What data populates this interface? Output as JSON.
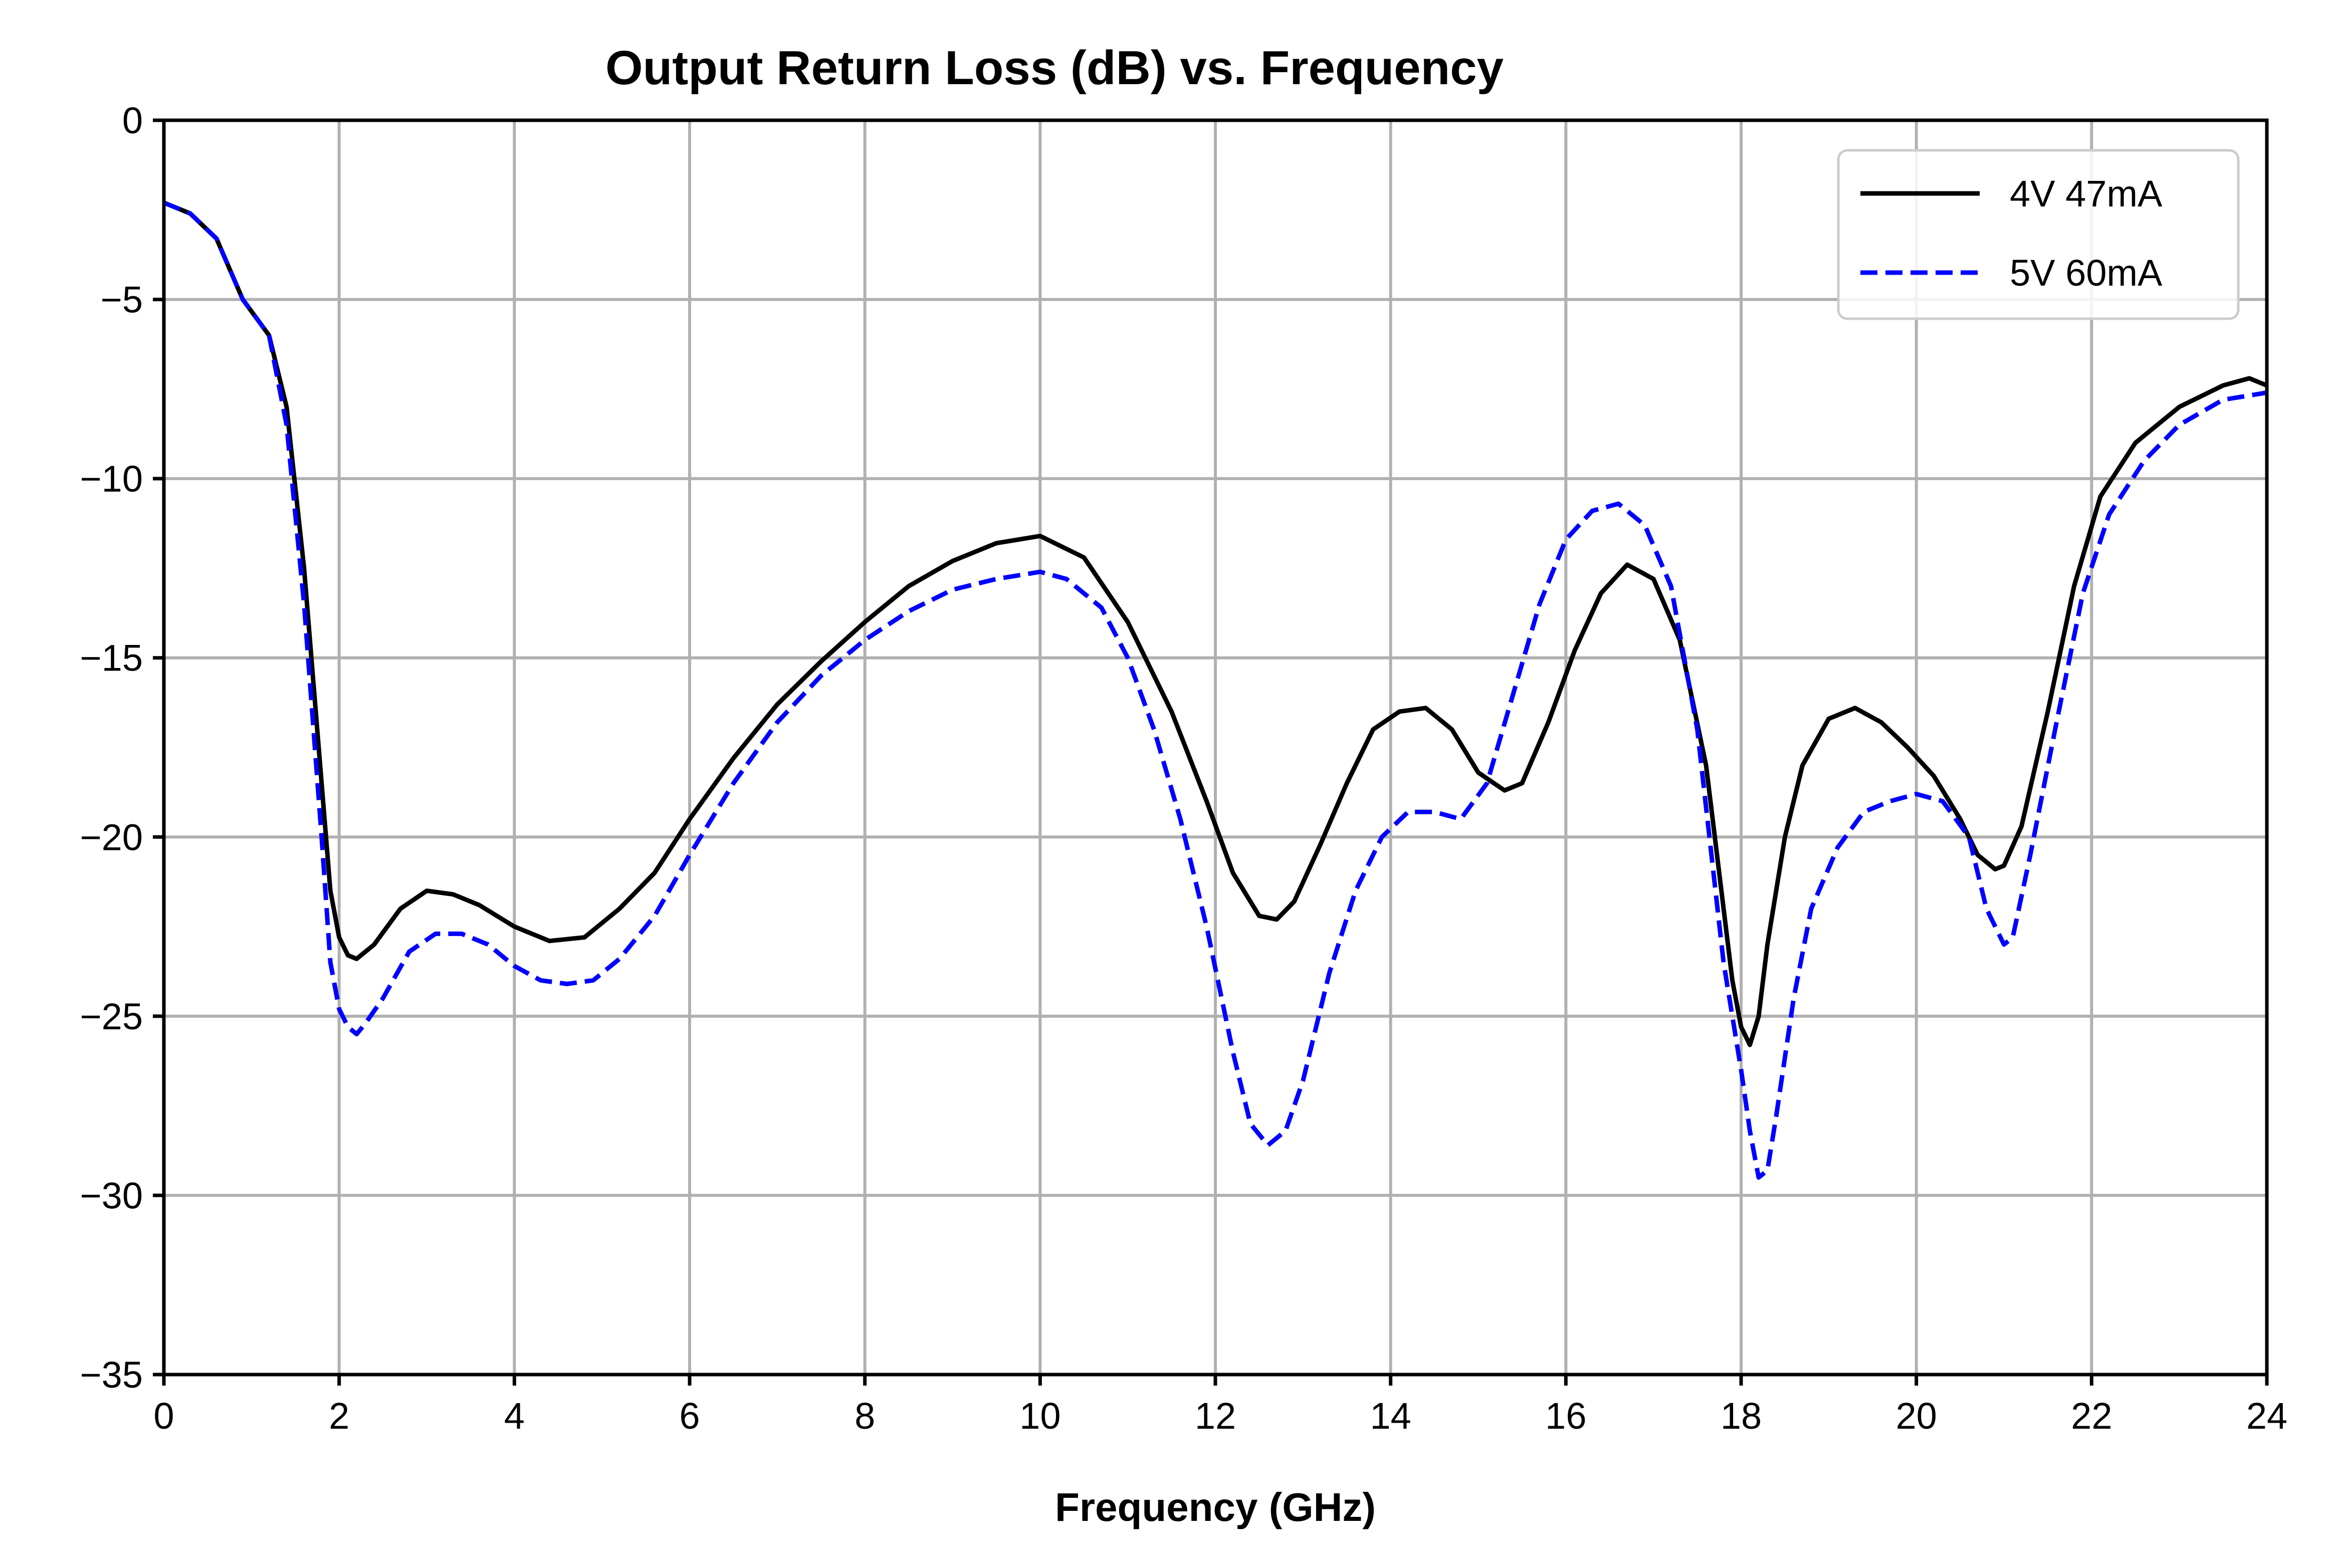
{
  "chart_data": {
    "type": "line",
    "title": "Output Return Loss (dB) vs. Frequency",
    "xlabel": "Frequency (GHz)",
    "ylabel": "",
    "xlim": [
      0,
      24
    ],
    "ylim": [
      -35,
      0
    ],
    "xticks": [
      0,
      2,
      4,
      6,
      8,
      10,
      12,
      14,
      16,
      18,
      20,
      22,
      24
    ],
    "yticks": [
      0,
      -5,
      -10,
      -15,
      -20,
      -25,
      -30,
      -35
    ],
    "grid": true,
    "legend_position": "top-right",
    "series": [
      {
        "name": "4V 47mA",
        "color": "#000000",
        "dash": "solid",
        "x": [
          0,
          0.3,
          0.6,
          0.9,
          1.2,
          1.4,
          1.6,
          1.8,
          1.9,
          2.0,
          2.1,
          2.2,
          2.4,
          2.7,
          3.0,
          3.3,
          3.6,
          4.0,
          4.4,
          4.8,
          5.2,
          5.6,
          6.0,
          6.5,
          7.0,
          7.5,
          8.0,
          8.5,
          9.0,
          9.5,
          10.0,
          10.5,
          11.0,
          11.5,
          11.9,
          12.2,
          12.5,
          12.7,
          12.9,
          13.2,
          13.5,
          13.8,
          14.1,
          14.4,
          14.7,
          15.0,
          15.3,
          15.5,
          15.8,
          16.1,
          16.4,
          16.7,
          17.0,
          17.3,
          17.6,
          17.9,
          18.0,
          18.1,
          18.2,
          18.3,
          18.5,
          18.7,
          19.0,
          19.3,
          19.6,
          19.9,
          20.2,
          20.5,
          20.7,
          20.9,
          21.0,
          21.2,
          21.5,
          21.8,
          22.1,
          22.5,
          23.0,
          23.5,
          23.8,
          24.0
        ],
        "y": [
          -2.3,
          -2.6,
          -3.3,
          -5.0,
          -6.0,
          -8.0,
          -12.5,
          -18.5,
          -21.5,
          -22.8,
          -23.3,
          -23.4,
          -23.0,
          -22.0,
          -21.5,
          -21.6,
          -21.9,
          -22.5,
          -22.9,
          -22.8,
          -22.0,
          -21.0,
          -19.5,
          -17.8,
          -16.3,
          -15.1,
          -14.0,
          -13.0,
          -12.3,
          -11.8,
          -11.6,
          -12.2,
          -14.0,
          -16.5,
          -19.0,
          -21.0,
          -22.2,
          -22.3,
          -21.8,
          -20.2,
          -18.5,
          -17.0,
          -16.5,
          -16.4,
          -17.0,
          -18.2,
          -18.7,
          -18.5,
          -16.8,
          -14.8,
          -13.2,
          -12.4,
          -12.8,
          -14.5,
          -18.0,
          -24.0,
          -25.3,
          -25.8,
          -25.0,
          -23.0,
          -20.0,
          -18.0,
          -16.7,
          -16.4,
          -16.8,
          -17.5,
          -18.3,
          -19.5,
          -20.5,
          -20.9,
          -20.8,
          -19.7,
          -16.5,
          -13.0,
          -10.5,
          -9.0,
          -8.0,
          -7.4,
          -7.2,
          -7.4
        ]
      },
      {
        "name": "5V 60mA",
        "color": "#0000ff",
        "dash": "dashed",
        "x": [
          0,
          0.3,
          0.6,
          0.9,
          1.2,
          1.4,
          1.6,
          1.8,
          1.9,
          2.0,
          2.1,
          2.2,
          2.3,
          2.5,
          2.8,
          3.1,
          3.4,
          3.7,
          4.0,
          4.3,
          4.6,
          4.9,
          5.2,
          5.6,
          6.0,
          6.5,
          7.0,
          7.5,
          8.0,
          8.5,
          9.0,
          9.5,
          10.0,
          10.3,
          10.7,
          11.0,
          11.3,
          11.6,
          11.9,
          12.2,
          12.4,
          12.6,
          12.8,
          13.0,
          13.3,
          13.6,
          13.9,
          14.2,
          14.5,
          14.8,
          15.1,
          15.4,
          15.7,
          16.0,
          16.3,
          16.6,
          16.9,
          17.2,
          17.5,
          17.8,
          18.0,
          18.1,
          18.2,
          18.3,
          18.4,
          18.6,
          18.8,
          19.1,
          19.4,
          19.7,
          20.0,
          20.3,
          20.6,
          20.8,
          21.0,
          21.1,
          21.3,
          21.6,
          21.9,
          22.2,
          22.6,
          23.0,
          23.5,
          24.0
        ],
        "y": [
          -2.3,
          -2.6,
          -3.3,
          -5.0,
          -6.0,
          -8.5,
          -13.5,
          -20.0,
          -23.5,
          -24.8,
          -25.3,
          -25.5,
          -25.2,
          -24.5,
          -23.2,
          -22.7,
          -22.7,
          -23.0,
          -23.6,
          -24.0,
          -24.1,
          -24.0,
          -23.4,
          -22.2,
          -20.5,
          -18.5,
          -16.8,
          -15.5,
          -14.5,
          -13.7,
          -13.1,
          -12.8,
          -12.6,
          -12.8,
          -13.6,
          -15.0,
          -17.0,
          -19.5,
          -22.5,
          -26.0,
          -28.0,
          -28.6,
          -28.2,
          -26.8,
          -23.8,
          -21.5,
          -20.0,
          -19.3,
          -19.3,
          -19.5,
          -18.5,
          -16.0,
          -13.5,
          -11.7,
          -10.9,
          -10.7,
          -11.3,
          -13.0,
          -17.0,
          -23.5,
          -26.5,
          -28.2,
          -29.5,
          -29.3,
          -27.8,
          -24.5,
          -22.0,
          -20.3,
          -19.3,
          -19.0,
          -18.8,
          -19.0,
          -20.0,
          -22.0,
          -23.0,
          -22.8,
          -20.5,
          -16.8,
          -13.2,
          -11.0,
          -9.5,
          -8.5,
          -7.8,
          -7.6
        ]
      }
    ]
  }
}
